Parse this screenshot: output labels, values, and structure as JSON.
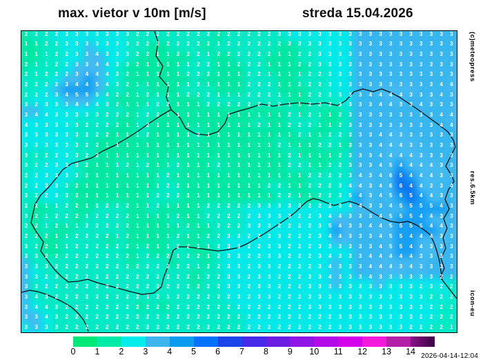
{
  "title": {
    "left": "max. vietor v 10m [m/s]",
    "right": "streda 15.04.2026"
  },
  "side_labels": {
    "top": "(c)meteopress",
    "middle": "res.6.5km",
    "bottom": "icon-eu"
  },
  "timestamp": "2026-04-14-12:04",
  "colorbar": {
    "tick_labels": [
      "0",
      "1",
      "2",
      "3",
      "4",
      "5",
      "6",
      "7",
      "8",
      "9",
      "10",
      "11",
      "12",
      "13",
      "14"
    ],
    "colors": [
      "#00e878",
      "#00eaa8",
      "#00eded",
      "#3eb5ee",
      "#0b9cf2",
      "#0071fa",
      "#1b45e9",
      "#4629e9",
      "#6b1ee2",
      "#9114e6",
      "#b30ae9",
      "#d400e9",
      "#f219dd",
      "#b421a8",
      "#8a138a"
    ],
    "end_color": "#3a0040"
  },
  "map": {
    "units": "m/s",
    "grid": {
      "cols": 43,
      "rows": 30,
      "values": [
        "2222333333322222222222222333333333333333333",
        "1122333333322222222122222233333333333333333",
        "1112233433322112221222222112233333333333333",
        "2112233443321111122112221112233333333333333",
        "2122234443211111222111221111223333333333333",
        "2222344543211111121111222112223333333333344",
        "2223455542212111222111222111223333444433343",
        "3233344432111221112222222211222333344334333",
        "3443333322212211111111111121211233333333344",
        "4333332222112111111111121122211233333333344",
        "3333332221112111121111111112112233344333333",
        "3333332211111111111111111211122133344433333",
        "3222332211111111111111111121111233344443333",
        "3223332111212112111211111122112233345444433",
        "2233332111111121111111111111222234346544433",
        "2233321111111122111111112211222344346644334",
        "3223321111111222111111111221122354345654433",
        "2211221122211211112222233333222344334555543",
        "3212221222211112112222233332234433345554433",
        "2212112222211111211222333222235433445555443",
        "2221122221211112112233223322234433345544433",
        "3221122222212112211233223322233333345544333",
        "3322222222212221221233223322234333444443333",
        "3332222222222222212233233222234333444343333",
        "3323222222222222212233233222334333433333322",
        "3322222222222222222233233222333333333332322",
        "3432222222221212222223233222333333333333222",
        "3443222222222222222222222222333333333333222",
        "3343222222222222222222222222222333333332222",
        "3333222222222222222222222222222333333322221"
      ]
    },
    "field_colors": {
      "0": "#0ce87e",
      "1": "#00e7a2",
      "2": "#00e9c6",
      "3": "#00e9e9",
      "4": "#44b9f1",
      "5": "#179ef4",
      "6": "#0c74f0"
    },
    "shade_overrides": [
      {
        "r0": 0,
        "c0": 32,
        "r1": 8,
        "c1": 42,
        "map": {
          "3": "#38b5ef"
        }
      },
      {
        "r0": 9,
        "c0": 32,
        "r1": 23,
        "c1": 42,
        "map": {
          "3": "#38b5ef",
          "2": "#00e9e9"
        }
      },
      {
        "r0": 17,
        "c0": 22,
        "r1": 29,
        "c1": 31,
        "map": {
          "2": "#00e9e9"
        }
      },
      {
        "r0": 19,
        "c0": 0,
        "r1": 25,
        "c1": 1,
        "map": {
          "3": "#44b9f1"
        }
      }
    ],
    "border_paths": [
      "M193,0 L198,16 L195,36 L205,51 L200,66 L213,81 L210,96 L217,114",
      "M217,114 L230,126 L238,141 L252,149 L270,151 L285,146 L295,134 L300,121 L315,116 L330,112 L348,106 L365,109 L382,106 L402,104 L422,106 L440,104 L458,108 L470,101 L482,88 L495,84 L510,88 L522,84 L535,89 L548,96 L560,104 L572,112 L583,120 L594,128 L605,136 L618,146 L626,158 L629,168 L622,182 L615,196 L624,210 L627,218 L619,230 L614,244 L620,258 L612,272 L617,286 L611,300 L615,315 L608,330 L613,344 L607,357 L610,361 L620,374 L631,388",
      "M217,114 L203,122 L185,134 L168,146 L152,156 L135,166 L118,174 L102,184 L88,188 L73,192 L60,201 L50,214 L40,226 L28,238 L20,251 L17,264 L14,278 L22,292 L32,306 L28,319 L38,333 L48,346 L58,356 L68,364 L82,363 L96,360 L110,365 L125,369 L140,373 L158,378 L175,382 L192,380 L203,371 L206,358 L211,345 L216,331 L220,318 L228,313 L240,313 L255,315 L270,317 L285,319 L300,317 L315,314 L328,308 L340,301 L352,294 L364,286 L376,278 L388,270 L398,262 L406,254 L414,247 L423,243 L432,245 L442,249 L453,253 L464,250 L475,247 L485,250 L497,256 L510,264 L522,271 L535,276 L548,278 L560,276 L572,281 L583,288 L592,295 L598,307 L602,319 L606,334 L608,348 L610,361",
      "M0,379 L12,376 L24,378 L36,382 L48,387 L60,393 L72,400 L82,409 L90,419 L95,429 L97,436"
    ]
  }
}
